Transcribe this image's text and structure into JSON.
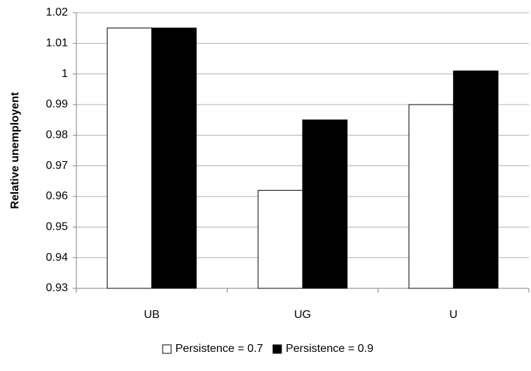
{
  "chart_data": {
    "type": "bar",
    "y_label": "Relative unemployent",
    "categories": [
      "UB",
      "UG",
      "U"
    ],
    "series": [
      {
        "name": "Persistence = 0.7",
        "color": "#ffffff",
        "values": [
          1.015,
          0.962,
          0.99
        ]
      },
      {
        "name": "Persistence = 0.9",
        "color": "#000000",
        "values": [
          1.015,
          0.985,
          1.001
        ]
      }
    ],
    "ylim": [
      0.93,
      1.02
    ],
    "yticks": [
      0.93,
      0.94,
      0.95,
      0.96,
      0.97,
      0.98,
      0.99,
      1,
      1.01,
      1.02
    ],
    "grid": true
  }
}
